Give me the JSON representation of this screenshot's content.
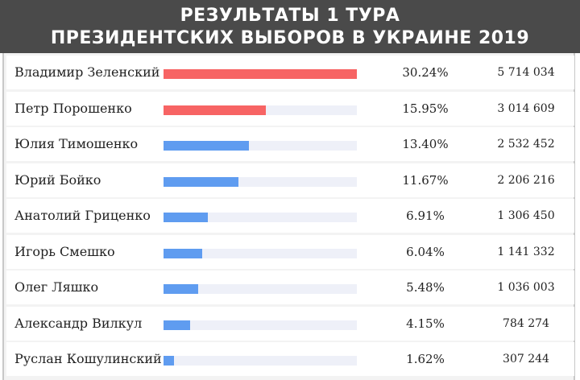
{
  "header": {
    "line1": "РЕЗУЛЬТАТЫ 1 ТУРА",
    "line2": "ПРЕЗИДЕНТСКИХ ВЫБОРОВ В УКРАИНЕ 2019"
  },
  "colors": {
    "leader": "#f76464",
    "other": "#5f9cf0"
  },
  "chart_data": {
    "type": "bar",
    "title": "РЕЗУЛЬТАТЫ 1 ТУРА ПРЕЗИДЕНТСКИХ ВЫБОРОВ В УКРАИНЕ 2019",
    "categories": [
      "Владимир Зеленский",
      "Петр Порошенко",
      "Юлия Тимошенко",
      "Юрий Бойко",
      "Анатолий Гриценко",
      "Игорь Смешко",
      "Олег Ляшко",
      "Александр Вилкул",
      "Руслан Кошулинский"
    ],
    "values": [
      30.24,
      15.95,
      13.4,
      11.67,
      6.91,
      6.04,
      5.48,
      4.15,
      1.62
    ],
    "percent_labels": [
      "30.24%",
      "15.95%",
      "13.40%",
      "11.67%",
      "6.91%",
      "6.04%",
      "5.48%",
      "4.15%",
      "1.62%"
    ],
    "votes": [
      "5 714 034",
      "3 014 609",
      "2 532 452",
      "2 206 216",
      "1 306 450",
      "1 141 332",
      "1 036 003",
      "784 274",
      "307 244"
    ],
    "highlight": [
      "leader",
      "leader",
      "other",
      "other",
      "other",
      "other",
      "other",
      "other",
      "other"
    ],
    "xlim": [
      0,
      30.24
    ],
    "orientation": "horizontal",
    "grid": false
  }
}
